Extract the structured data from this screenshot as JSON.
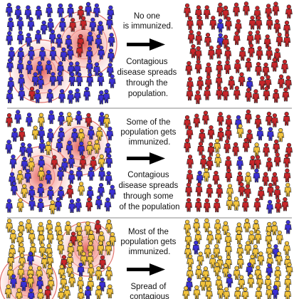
{
  "colors": {
    "susceptible": "#3b30d6",
    "infected": "#c8262a",
    "immunized": "#f2c33c",
    "infection_glow": "#e8564e",
    "arrow": "#000000"
  },
  "panels": [
    {
      "id": "none-immunized",
      "top_text": [
        "No one",
        "is immunized."
      ],
      "bottom_text": [
        "Contagious",
        "disease spreads",
        "through the",
        "population."
      ],
      "before": {
        "susceptible_share": 0.92,
        "infected_share": 0.08,
        "immunized_share": 0.0
      },
      "after": {
        "susceptible_share": 0.05,
        "infected_share": 0.95,
        "immunized_share": 0.0
      }
    },
    {
      "id": "some-immunized",
      "top_text": [
        "Some of the",
        "population gets",
        "immunized."
      ],
      "bottom_text": [
        "Contagious",
        "disease spreads",
        "through some",
        "of the population"
      ],
      "before": {
        "susceptible_share": 0.78,
        "infected_share": 0.08,
        "immunized_share": 0.14
      },
      "after": {
        "susceptible_share": 0.08,
        "infected_share": 0.76,
        "immunized_share": 0.16
      }
    },
    {
      "id": "most-immunized",
      "top_text": [
        "Most of the",
        "population gets",
        "immunized."
      ],
      "bottom_text": [
        "Spread of",
        "contagious"
      ],
      "before": {
        "susceptible_share": 0.12,
        "infected_share": 0.04,
        "immunized_share": 0.84
      },
      "after": {
        "susceptible_share": 0.1,
        "infected_share": 0.02,
        "immunized_share": 0.88
      }
    }
  ]
}
